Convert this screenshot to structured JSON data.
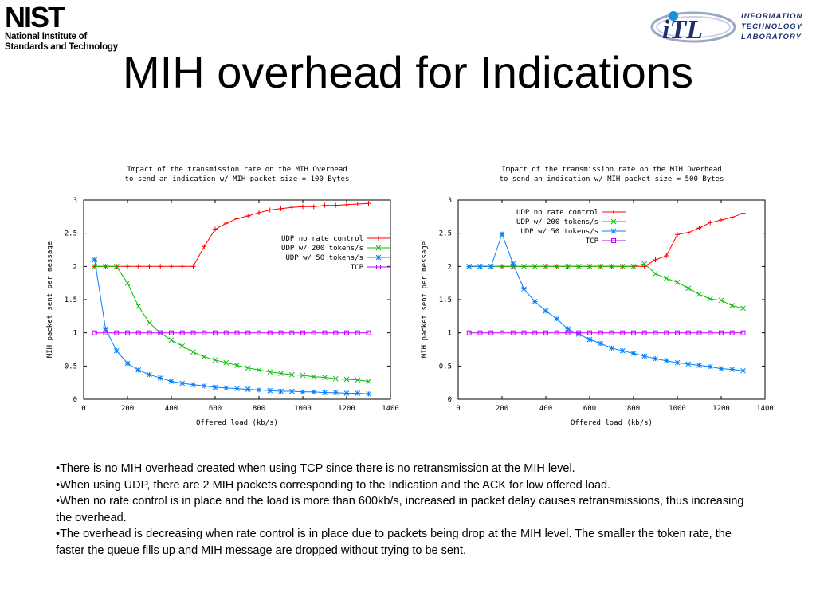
{
  "header": {
    "nist_logo": {
      "mark": "NIST",
      "line1": "National Institute of",
      "line2": "Standards and Technology"
    },
    "itl_logo": {
      "mark": "iTL",
      "line1": "INFORMATION",
      "line2": "TECHNOLOGY",
      "line3": "LABORATORY"
    }
  },
  "title": "MIH overhead for Indications",
  "colors": {
    "udp_no_rate": "#ff0000",
    "udp_200": "#00c000",
    "udp_50": "#0080ff",
    "tcp": "#c000ff"
  },
  "chart_data": [
    {
      "type": "line",
      "title_line1": "Impact of the transmission rate on the MIH Overhead",
      "title_line2": "to send an indication w/ MIH packet size = 100 Bytes",
      "xlabel": "Offered load (kb/s)",
      "ylabel": "MIH packet sent per message",
      "xlim": [
        0,
        1400
      ],
      "ylim": [
        0,
        3
      ],
      "xticks": [
        "0",
        "200",
        "400",
        "600",
        "800",
        "1000",
        "1200",
        "1400"
      ],
      "yticks": [
        "0",
        "0.5",
        "1",
        "1.5",
        "2",
        "2.5",
        "3"
      ],
      "legend_position": "right",
      "series": [
        {
          "name": "UDP no rate control",
          "color": "#ff0000",
          "marker": "+",
          "x": [
            50,
            100,
            150,
            200,
            250,
            300,
            350,
            400,
            450,
            500,
            550,
            600,
            650,
            700,
            750,
            800,
            850,
            900,
            950,
            1000,
            1050,
            1100,
            1150,
            1200,
            1250,
            1300
          ],
          "y": [
            2,
            2,
            2,
            2,
            2,
            2,
            2,
            2,
            2,
            2,
            2.3,
            2.56,
            2.65,
            2.72,
            2.76,
            2.81,
            2.85,
            2.87,
            2.89,
            2.9,
            2.9,
            2.92,
            2.92,
            2.93,
            2.94,
            2.95
          ]
        },
        {
          "name": "UDP w/ 200 tokens/s",
          "color": "#00c000",
          "marker": "x",
          "x": [
            50,
            100,
            150,
            200,
            250,
            300,
            350,
            400,
            450,
            500,
            550,
            600,
            650,
            700,
            750,
            800,
            850,
            900,
            950,
            1000,
            1050,
            1100,
            1150,
            1200,
            1250,
            1300
          ],
          "y": [
            2,
            2,
            2,
            1.75,
            1.4,
            1.15,
            1.0,
            0.89,
            0.8,
            0.71,
            0.64,
            0.59,
            0.55,
            0.51,
            0.47,
            0.44,
            0.41,
            0.39,
            0.37,
            0.36,
            0.34,
            0.33,
            0.31,
            0.3,
            0.29,
            0.27
          ]
        },
        {
          "name": "UDP w/ 50 tokens/s",
          "color": "#0080ff",
          "marker": "*",
          "x": [
            50,
            100,
            150,
            200,
            250,
            300,
            350,
            400,
            450,
            500,
            550,
            600,
            650,
            700,
            750,
            800,
            850,
            900,
            950,
            1000,
            1050,
            1100,
            1150,
            1200,
            1250,
            1300
          ],
          "y": [
            2.1,
            1.06,
            0.73,
            0.54,
            0.44,
            0.37,
            0.32,
            0.27,
            0.24,
            0.22,
            0.2,
            0.18,
            0.17,
            0.16,
            0.15,
            0.14,
            0.13,
            0.12,
            0.12,
            0.11,
            0.11,
            0.1,
            0.1,
            0.09,
            0.09,
            0.08
          ]
        },
        {
          "name": "TCP",
          "color": "#c000ff",
          "marker": "square",
          "x": [
            50,
            100,
            150,
            200,
            250,
            300,
            350,
            400,
            450,
            500,
            550,
            600,
            650,
            700,
            750,
            800,
            850,
            900,
            950,
            1000,
            1050,
            1100,
            1150,
            1200,
            1250,
            1300
          ],
          "y": [
            1,
            1,
            1,
            1,
            1,
            1,
            1,
            1,
            1,
            1,
            1,
            1,
            1,
            1,
            1,
            1,
            1,
            1,
            1,
            1,
            1,
            1,
            1,
            1,
            1,
            1
          ]
        }
      ]
    },
    {
      "type": "line",
      "title_line1": "Impact of the transmission rate on the MIH Overhead",
      "title_line2": "to send an indication w/ MIH packet size = 500 Bytes",
      "xlabel": "Offered load (kb/s)",
      "ylabel": "MIH packet sent per message",
      "xlim": [
        0,
        1400
      ],
      "ylim": [
        0,
        3
      ],
      "xticks": [
        "0",
        "200",
        "400",
        "600",
        "800",
        "1000",
        "1200",
        "1400"
      ],
      "yticks": [
        "0",
        "0.5",
        "1",
        "1.5",
        "2",
        "2.5",
        "3"
      ],
      "legend_position": "top-left",
      "series": [
        {
          "name": "UDP no rate control",
          "color": "#ff0000",
          "marker": "+",
          "x": [
            50,
            100,
            150,
            200,
            250,
            300,
            350,
            400,
            450,
            500,
            550,
            600,
            650,
            700,
            750,
            800,
            850,
            900,
            950,
            1000,
            1050,
            1100,
            1150,
            1200,
            1250,
            1300
          ],
          "y": [
            2,
            2,
            2,
            2,
            2,
            2,
            2,
            2,
            2,
            2,
            2,
            2,
            2,
            2,
            2,
            2,
            2,
            2.1,
            2.16,
            2.48,
            2.51,
            2.58,
            2.66,
            2.7,
            2.74,
            2.8
          ]
        },
        {
          "name": "UDP w/ 200 tokens/s",
          "color": "#00c000",
          "marker": "x",
          "x": [
            50,
            100,
            150,
            200,
            250,
            300,
            350,
            400,
            450,
            500,
            550,
            600,
            650,
            700,
            750,
            800,
            850,
            900,
            950,
            1000,
            1050,
            1100,
            1150,
            1200,
            1250,
            1300
          ],
          "y": [
            2,
            2,
            2,
            2,
            2,
            2,
            2,
            2,
            2,
            2,
            2,
            2,
            2,
            2,
            2,
            2,
            2.04,
            1.89,
            1.82,
            1.76,
            1.67,
            1.58,
            1.51,
            1.49,
            1.41,
            1.37
          ]
        },
        {
          "name": "UDP w/ 50 tokens/s",
          "color": "#0080ff",
          "marker": "*",
          "x": [
            50,
            100,
            150,
            200,
            250,
            300,
            350,
            400,
            450,
            500,
            550,
            600,
            650,
            700,
            750,
            800,
            850,
            900,
            950,
            1000,
            1050,
            1100,
            1150,
            1200,
            1250,
            1300
          ],
          "y": [
            2,
            2,
            2,
            2.49,
            2.04,
            1.66,
            1.47,
            1.33,
            1.21,
            1.06,
            0.98,
            0.9,
            0.84,
            0.77,
            0.73,
            0.69,
            0.65,
            0.61,
            0.58,
            0.55,
            0.53,
            0.51,
            0.49,
            0.46,
            0.45,
            0.43
          ]
        },
        {
          "name": "TCP",
          "color": "#c000ff",
          "marker": "square",
          "x": [
            50,
            100,
            150,
            200,
            250,
            300,
            350,
            400,
            450,
            500,
            550,
            600,
            650,
            700,
            750,
            800,
            850,
            900,
            950,
            1000,
            1050,
            1100,
            1150,
            1200,
            1250,
            1300
          ],
          "y": [
            1,
            1,
            1,
            1,
            1,
            1,
            1,
            1,
            1,
            1,
            1,
            1,
            1,
            1,
            1,
            1,
            1,
            1,
            1,
            1,
            1,
            1,
            1,
            1,
            1,
            1
          ]
        }
      ]
    }
  ],
  "bullets": [
    "•There is no MIH overhead created when using TCP since there is no retransmission at the MIH level.",
    "•When using UDP, there are 2 MIH packets corresponding to the Indication and the ACK for low offered load.",
    "•When no rate control is in place and the load is more than 600kb/s, increased in packet delay causes retransmissions, thus increasing the overhead.",
    "•The overhead is decreasing when rate control is in place due to packets being drop at the MIH level. The smaller the token rate, the faster the queue fills up and MIH message are dropped without trying to be sent."
  ]
}
